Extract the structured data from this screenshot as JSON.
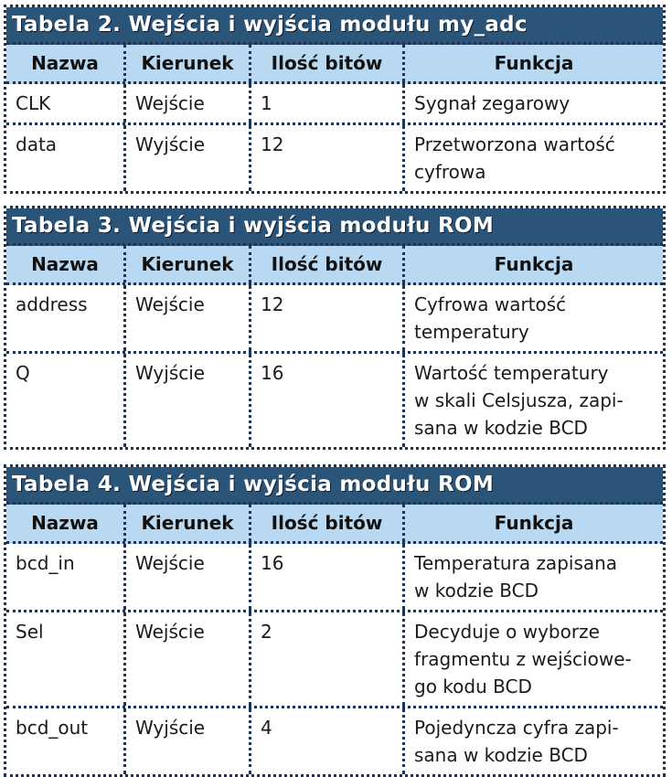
{
  "tables": [
    {
      "title": "Tabela 2. Wejścia i wyjścia modułu my_adc",
      "headers": [
        "Nazwa",
        "Kierunek",
        "Ilość bitów",
        "Funkcja"
      ],
      "rows": [
        {
          "name": "CLK",
          "dir": "Wejście",
          "bits": "1",
          "func": [
            "Sygnał zegarowy"
          ]
        },
        {
          "name": "data",
          "dir": "Wyjście",
          "bits": "12",
          "func": [
            "Przetworzona wartość",
            "cyfrowa"
          ]
        }
      ]
    },
    {
      "title": "Tabela 3. Wejścia i wyjścia modułu ROM",
      "headers": [
        "Nazwa",
        "Kierunek",
        "Ilość bitów",
        "Funkcja"
      ],
      "rows": [
        {
          "name": "address",
          "dir": "Wejście",
          "bits": "12",
          "func": [
            "Cyfrowa wartość",
            "temperatury"
          ]
        },
        {
          "name": "Q",
          "dir": "Wyjście",
          "bits": "16",
          "func": [
            "Wartość temperatury",
            "w skali Celsjusza, zapi-",
            "sana w kodzie BCD"
          ]
        }
      ]
    },
    {
      "title": "Tabela 4. Wejścia i wyjścia modułu ROM",
      "headers": [
        "Nazwa",
        "Kierunek",
        "Ilość bitów",
        "Funkcja"
      ],
      "rows": [
        {
          "name": "bcd_in",
          "dir": "Wejście",
          "bits": "16",
          "func": [
            "Temperatura zapisana",
            "w kodzie BCD"
          ]
        },
        {
          "name": "Sel",
          "dir": "Wejście",
          "bits": "2",
          "func": [
            "Decyduje o wyborze",
            "fragmentu z wejściowe-",
            "go kodu BCD"
          ]
        },
        {
          "name": "bcd_out",
          "dir": "Wyjście",
          "bits": "4",
          "func": [
            "Pojedyncza cyfra zapi-",
            "sana w kodzie BCD"
          ]
        }
      ]
    }
  ],
  "colors": {
    "title_bg": "#2a5478",
    "header_bg": "#b8d9f1",
    "border": "#1d3454"
  }
}
